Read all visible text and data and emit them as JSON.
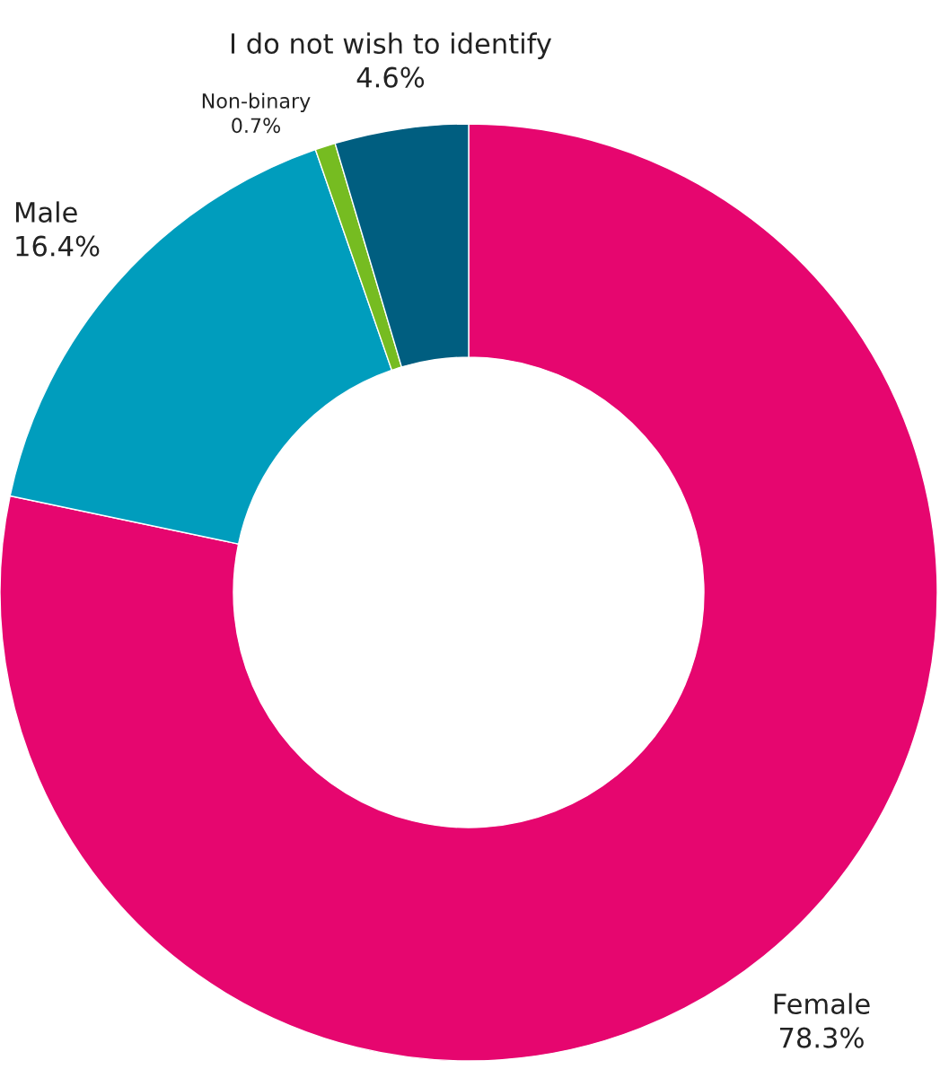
{
  "chart_data": {
    "type": "donut",
    "categories": [
      "Female",
      "Male",
      "Non-binary",
      "I do not wish to identify"
    ],
    "values": [
      78.3,
      16.4,
      0.7,
      4.6
    ],
    "colors": [
      "#e6066f",
      "#009dbd",
      "#76bc21",
      "#005e80"
    ],
    "value_labels": [
      "78.3%",
      "16.4%",
      "0.7%",
      "4.6%"
    ]
  }
}
